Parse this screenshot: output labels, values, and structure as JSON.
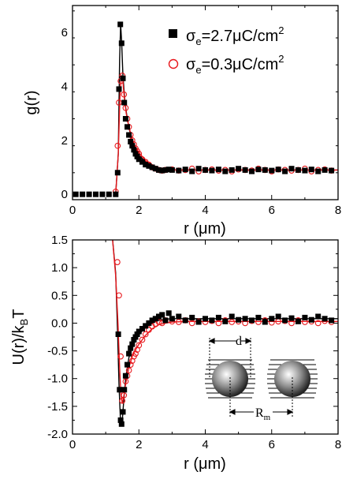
{
  "chart_data": [
    {
      "type": "scatter",
      "title": "",
      "xlabel": "r (μm)",
      "ylabel": "g(r)",
      "xlim": [
        0,
        8
      ],
      "ylim": [
        -0.2,
        7
      ],
      "xticks": [
        0,
        2,
        4,
        6,
        8
      ],
      "yticks": [
        0,
        2,
        4,
        6
      ],
      "xtick_labels": [
        "0",
        "2",
        "4",
        "6",
        "8"
      ],
      "ytick_labels": [
        "0",
        "2",
        "4",
        "6"
      ],
      "legend": {
        "placement": "top-right",
        "entries": [
          {
            "marker": "filled-square",
            "color": "#000000",
            "sym": "σ",
            "sub": "e",
            "text": "=2.7μC/cm",
            "sup": "2"
          },
          {
            "marker": "open-circle",
            "color": "#e8161b",
            "sym": "σ",
            "sub": "e",
            "text": "=0.3μC/cm",
            "sup": "2"
          }
        ]
      },
      "series": [
        {
          "name": "σe=2.7μC/cm2",
          "color": "#000000",
          "marker": "filled-square",
          "x": [
            0.1,
            0.3,
            0.5,
            0.7,
            0.9,
            1.1,
            1.3,
            1.36,
            1.4,
            1.44,
            1.48,
            1.52,
            1.56,
            1.6,
            1.65,
            1.7,
            1.75,
            1.8,
            1.85,
            1.9,
            1.95,
            2.0,
            2.1,
            2.2,
            2.3,
            2.4,
            2.5,
            2.6,
            2.7,
            2.8,
            2.9,
            3.0,
            3.2,
            3.4,
            3.6,
            3.8,
            4.0,
            4.2,
            4.4,
            4.6,
            4.8,
            5.0,
            5.2,
            5.4,
            5.6,
            5.8,
            6.0,
            6.2,
            6.4,
            6.6,
            6.8,
            7.0,
            7.2,
            7.4,
            7.6,
            7.8
          ],
          "y": [
            0,
            0,
            0,
            0,
            0,
            0,
            0,
            0.8,
            3.9,
            6.3,
            5.6,
            4.3,
            3.4,
            2.8,
            2.5,
            2.2,
            1.95,
            1.8,
            1.65,
            1.5,
            1.4,
            1.3,
            1.2,
            1.1,
            1.05,
            1.0,
            0.95,
            0.9,
            0.88,
            0.9,
            0.92,
            0.9,
            0.88,
            0.92,
            0.85,
            0.95,
            0.9,
            0.88,
            0.92,
            0.85,
            0.9,
            0.95,
            0.9,
            0.85,
            0.92,
            0.9,
            0.88,
            0.92,
            0.85,
            0.95,
            0.9,
            0.88,
            0.92,
            0.85,
            0.9,
            0.88
          ]
        },
        {
          "name": "σe=0.3μC/cm2",
          "color": "#e8161b",
          "marker": "open-circle",
          "x": [
            1.3,
            1.36,
            1.4,
            1.45,
            1.5,
            1.55,
            1.6,
            1.65,
            1.7,
            1.75,
            1.8,
            1.85,
            1.9,
            1.95,
            2.0,
            2.1,
            2.2,
            2.3,
            2.4,
            2.5,
            2.6,
            2.7,
            2.8,
            3.0,
            3.2,
            3.4,
            3.6,
            3.8,
            4.0,
            4.2,
            4.4,
            4.6,
            4.8,
            5.0,
            5.2,
            5.4,
            5.6,
            5.8,
            6.0,
            6.2,
            6.4,
            6.6,
            6.8,
            7.0,
            7.2,
            7.4,
            7.6,
            7.8
          ],
          "y": [
            0.1,
            1.8,
            3.4,
            4.2,
            4.4,
            3.7,
            3.2,
            2.8,
            2.5,
            2.2,
            2.0,
            1.85,
            1.7,
            1.6,
            1.5,
            1.3,
            1.2,
            1.1,
            1.0,
            0.95,
            0.9,
            0.88,
            0.9,
            0.92,
            0.88,
            0.9,
            0.95,
            0.85,
            0.9,
            0.92,
            0.88,
            0.9,
            0.85,
            0.92,
            0.9,
            0.88,
            0.95,
            0.9,
            0.85,
            0.92,
            0.9,
            0.88,
            0.9,
            0.95,
            0.85,
            0.9,
            0.92,
            0.88
          ]
        }
      ],
      "fits": [
        {
          "color": "#000000",
          "x": [
            1.3,
            1.38,
            1.42,
            1.45,
            1.48,
            1.52,
            1.58,
            1.65,
            1.75,
            1.85,
            2.0,
            2.2,
            2.5,
            2.8,
            3.2,
            3.6,
            4.0,
            5.0,
            6.0,
            7.0,
            8.0
          ],
          "y": [
            0,
            1.5,
            5.0,
            6.3,
            5.7,
            4.4,
            3.4,
            2.8,
            2.2,
            1.8,
            1.45,
            1.2,
            1.0,
            0.92,
            0.9,
            0.9,
            0.9,
            0.9,
            0.9,
            0.9,
            0.9
          ]
        },
        {
          "color": "#e8161b",
          "x": [
            1.3,
            1.38,
            1.43,
            1.47,
            1.51,
            1.56,
            1.62,
            1.7,
            1.8,
            1.9,
            2.0,
            2.2,
            2.5,
            2.8,
            3.2,
            3.6,
            4.0,
            5.0,
            6.0,
            7.0,
            8.0
          ],
          "y": [
            0,
            1.5,
            3.6,
            4.4,
            4.3,
            3.6,
            3.0,
            2.5,
            2.05,
            1.75,
            1.55,
            1.25,
            1.02,
            0.93,
            0.9,
            0.9,
            0.9,
            0.9,
            0.9,
            0.9,
            0.9
          ]
        }
      ]
    },
    {
      "type": "scatter",
      "title": "",
      "xlabel": "r (μm)",
      "ylabel_main": "U(r)/k",
      "ylabel_sub": "B",
      "ylabel_tail": "T",
      "xlim": [
        0,
        8
      ],
      "ylim": [
        -2.0,
        1.5
      ],
      "xticks": [
        0,
        2,
        4,
        6,
        8
      ],
      "yticks": [
        1.5,
        1.0,
        0.5,
        0.0,
        -0.5,
        -1.0,
        -1.5,
        -2.0
      ],
      "xtick_labels": [
        "0",
        "2",
        "4",
        "6",
        "8"
      ],
      "ytick_labels": [
        "1.5",
        "1.0",
        "0.5",
        "0.0",
        "-0.5",
        "-1.0",
        "-1.5",
        "-2.0"
      ],
      "inset": {
        "d_label": "d",
        "r_label": "R",
        "r_sub": "m"
      },
      "series": [
        {
          "name": "σe=2.7μC/cm2",
          "color": "#000000",
          "marker": "filled-square",
          "x": [
            1.38,
            1.42,
            1.45,
            1.48,
            1.52,
            1.56,
            1.6,
            1.65,
            1.7,
            1.75,
            1.8,
            1.85,
            1.9,
            1.95,
            2.0,
            2.1,
            2.2,
            2.3,
            2.4,
            2.5,
            2.6,
            2.7,
            2.8,
            2.9,
            3.0,
            3.2,
            3.4,
            3.6,
            3.8,
            4.0,
            4.2,
            4.4,
            4.6,
            4.8,
            5.0,
            5.2,
            5.4,
            5.6,
            5.8,
            6.0,
            6.2,
            6.4,
            6.6,
            6.8,
            7.0,
            7.2,
            7.4,
            7.6,
            7.8
          ],
          "y": [
            -0.2,
            -1.2,
            -1.75,
            -1.82,
            -1.6,
            -1.2,
            -0.95,
            -0.75,
            -0.55,
            -0.45,
            -0.38,
            -0.3,
            -0.25,
            -0.2,
            -0.15,
            -0.1,
            -0.05,
            0.0,
            0.05,
            0.08,
            0.12,
            0.15,
            0.05,
            0.18,
            0.08,
            0.12,
            0.05,
            0.1,
            0.02,
            0.08,
            0.05,
            0.1,
            0.03,
            0.12,
            0.06,
            0.08,
            0.05,
            0.1,
            0.02,
            0.08,
            0.12,
            0.05,
            0.09,
            0.03,
            0.1,
            0.06,
            0.12,
            0.08,
            0.05
          ]
        },
        {
          "name": "σe=0.3μC/cm2",
          "color": "#e8161b",
          "marker": "open-circle",
          "x": [
            1.35,
            1.4,
            1.45,
            1.5,
            1.55,
            1.6,
            1.65,
            1.7,
            1.75,
            1.8,
            1.85,
            1.9,
            1.95,
            2.0,
            2.1,
            2.2,
            2.3,
            2.4,
            2.5,
            2.6,
            2.7,
            2.8,
            3.0,
            3.2,
            3.4,
            3.6,
            3.8,
            4.0,
            4.2,
            4.4,
            4.6,
            4.8,
            5.0,
            5.2,
            5.4,
            5.6,
            5.8,
            6.0,
            6.2,
            6.4,
            6.6,
            6.8,
            7.0,
            7.2,
            7.4,
            7.6,
            7.8
          ],
          "y": [
            1.1,
            0.5,
            -0.6,
            -1.4,
            -1.3,
            -1.05,
            -0.95,
            -0.85,
            -0.75,
            -0.68,
            -0.6,
            -0.55,
            -0.48,
            -0.4,
            -0.3,
            -0.2,
            -0.12,
            -0.06,
            -0.02,
            0.02,
            0.0,
            0.05,
            0.03,
            0.02,
            0.05,
            0.0,
            0.03,
            0.02,
            0.04,
            0.0,
            0.05,
            0.02,
            0.03,
            0.0,
            0.04,
            0.02,
            0.05,
            0.01,
            0.03,
            0.04,
            0.0,
            0.05,
            0.02,
            0.03,
            0.0,
            0.04,
            0.02
          ]
        }
      ],
      "fits": [
        {
          "color": "#000000",
          "x": [
            1.2,
            1.3,
            1.36,
            1.4,
            1.44,
            1.47,
            1.5,
            1.55,
            1.6,
            1.7,
            1.8,
            1.9,
            2.0,
            2.2,
            2.4,
            2.6,
            2.8,
            3.0,
            3.5,
            4.0,
            5.0,
            6.0,
            7.0,
            8.0
          ],
          "y": [
            1.55,
            0.9,
            -0.2,
            -1.1,
            -1.7,
            -1.85,
            -1.75,
            -1.35,
            -1.0,
            -0.62,
            -0.42,
            -0.3,
            -0.2,
            -0.08,
            0.0,
            0.05,
            0.07,
            0.08,
            0.08,
            0.08,
            0.08,
            0.08,
            0.08,
            0.08
          ]
        },
        {
          "color": "#e8161b",
          "x": [
            1.2,
            1.3,
            1.37,
            1.42,
            1.46,
            1.5,
            1.55,
            1.6,
            1.7,
            1.8,
            1.9,
            2.0,
            2.2,
            2.4,
            2.6,
            2.8,
            3.0,
            3.5,
            4.0,
            5.0,
            6.0,
            7.0,
            8.0
          ],
          "y": [
            1.55,
            0.85,
            0.0,
            -0.8,
            -1.3,
            -1.45,
            -1.3,
            -1.1,
            -0.8,
            -0.6,
            -0.48,
            -0.38,
            -0.22,
            -0.1,
            -0.03,
            0.0,
            0.02,
            0.03,
            0.03,
            0.03,
            0.03,
            0.03,
            0.03
          ]
        }
      ]
    }
  ]
}
